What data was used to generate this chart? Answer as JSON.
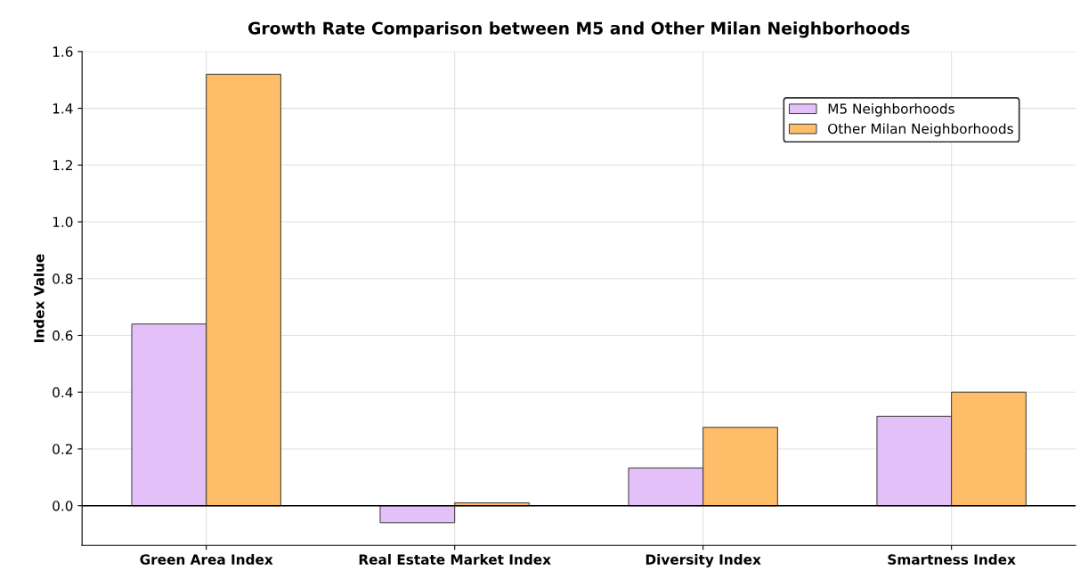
{
  "chart_data": {
    "type": "bar",
    "title": "Growth Rate Comparison between M5 and Other Milan Neighborhoods",
    "ylabel": "Index Value",
    "categories": [
      "Green Area Index",
      "Real Estate Market Index",
      "Diversity Index",
      "Smartness Index"
    ],
    "series": [
      {
        "name": "M5 Neighborhoods",
        "color": "#e3c1f8",
        "values": [
          0.64,
          -0.06,
          0.133,
          0.315
        ]
      },
      {
        "name": "Other Milan Neighborhoods",
        "color": "#febd69",
        "values": [
          1.52,
          0.01,
          0.276,
          0.4
        ]
      }
    ],
    "ylim": [
      -0.14,
      1.6
    ],
    "yticks": [
      {
        "value": 0,
        "label": "0.0"
      },
      0.2,
      0.4,
      0.6,
      0.8,
      {
        "value": 1,
        "label": "1.0"
      },
      1.2,
      1.4,
      1.6
    ],
    "ref_lines": [
      {
        "axis": "y",
        "value": 0,
        "color": "#000000"
      }
    ],
    "grid": true,
    "legend": "top right"
  }
}
